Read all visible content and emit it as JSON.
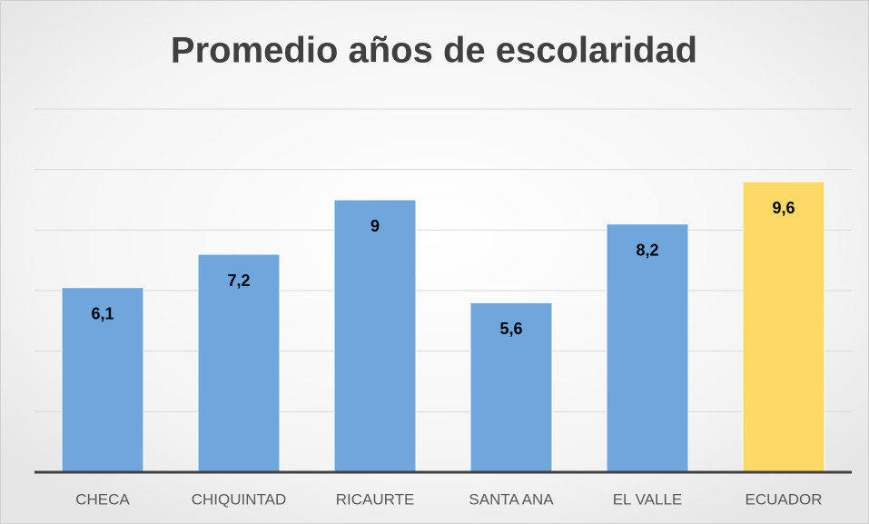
{
  "chart_data": {
    "type": "bar",
    "title": "Promedio años de escolaridad",
    "categories": [
      "CHECA",
      "CHIQUINTAD",
      "RICAURTE",
      "SANTA ANA",
      "EL VALLE",
      "ECUADOR"
    ],
    "values": [
      6.1,
      7.2,
      9,
      5.6,
      8.2,
      9.6
    ],
    "value_labels": [
      "6,1",
      "7,2",
      "9",
      "5,6",
      "8,2",
      "9,6"
    ],
    "colors": [
      "#6fa6dc",
      "#6fa6dc",
      "#6fa6dc",
      "#6fa6dc",
      "#6fa6dc",
      "#ffd966"
    ],
    "ylim": [
      0,
      12
    ],
    "yticks": [
      0,
      2,
      4,
      6,
      8,
      10,
      12
    ],
    "grid": true
  }
}
